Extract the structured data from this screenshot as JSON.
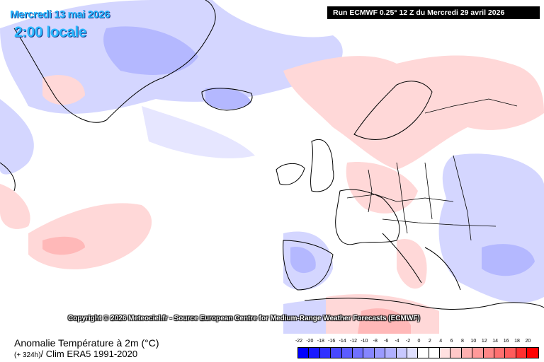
{
  "header": {
    "date": "Mercredi 13 mai 2026",
    "time": "2:00 locale",
    "run_info": "Run ECMWF 0.25° 12 Z du Mercredi 29 avril 2026"
  },
  "copyright": "Copyright © 2026 Meteociel.fr - Source European Centre for Medium-Range Weather Forecasts (ECMWF)",
  "footer": {
    "title": "Anomalie Température à 2m (°C)",
    "offset": "(+ 324h)",
    "clim": "/ Clim ERA5 1991-2020"
  },
  "legend": {
    "labels": [
      "-22",
      "-20",
      "-18",
      "-16",
      "-14",
      "-12",
      "-10",
      "-8",
      "-6",
      "-4",
      "-2",
      "0",
      "2",
      "4",
      "6",
      "8",
      "10",
      "12",
      "14",
      "16",
      "18",
      "20"
    ],
    "colors": [
      "#0000ff",
      "#1a1aff",
      "#3030ff",
      "#4848ff",
      "#5c5cff",
      "#7070ff",
      "#8686ff",
      "#9a9aff",
      "#b0b0ff",
      "#c8c8ff",
      "#e0e0ff",
      "#ffffff",
      "#ffffff",
      "#ffe0e0",
      "#ffc8c8",
      "#ffb0b0",
      "#ff9a9a",
      "#ff8686",
      "#ff7070",
      "#ff5c5c",
      "#ff3030",
      "#ff0000"
    ]
  },
  "theme": {
    "title_color": "#2ab8ff",
    "cold": "#c8c8ff",
    "warm": "#ffc8c8"
  }
}
